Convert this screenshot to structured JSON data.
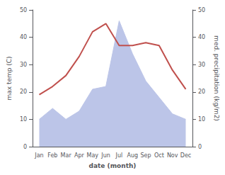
{
  "chart_data": {
    "type": "line",
    "xlabel": "date (month)",
    "ylabel": "max temp (C)",
    "y2label": "med. precipitation (kg/m2)",
    "categories": [
      "Jan",
      "Feb",
      "Mar",
      "Apr",
      "May",
      "Jun",
      "Jul",
      "Aug",
      "Sep",
      "Oct",
      "Nov",
      "Dec"
    ],
    "series": [
      {
        "type": "area",
        "axis": "y2",
        "color": "#bcc5e8",
        "values": [
          10,
          14,
          10,
          13,
          21,
          22,
          46,
          34,
          24,
          18,
          12,
          10
        ]
      },
      {
        "type": "line",
        "color": "#c0504d",
        "values": [
          19,
          22,
          26,
          33,
          42,
          45,
          37,
          37,
          38,
          37,
          28,
          21
        ]
      }
    ],
    "ylim": [
      0,
      50
    ],
    "yticks": [
      0,
      10,
      20,
      30,
      40,
      50
    ],
    "y2lim": [
      0,
      50
    ],
    "y2ticks": [
      0,
      10,
      20,
      30,
      40,
      50
    ],
    "grid": false
  }
}
